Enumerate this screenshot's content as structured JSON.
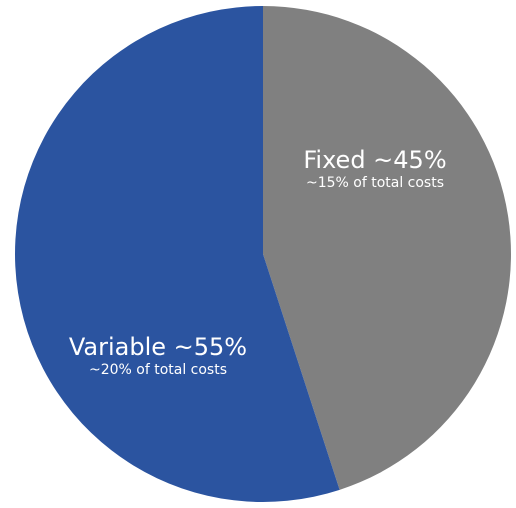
{
  "chart_data": {
    "type": "pie",
    "title": "",
    "slices": [
      {
        "name": "Fixed",
        "label": "Fixed ~45%",
        "sublabel": "~15% of total costs",
        "value": 45,
        "color": "#808080"
      },
      {
        "name": "Variable",
        "label": "Variable ~55%",
        "sublabel": "~20% of total costs",
        "value": 55,
        "color": "#2b54a0"
      }
    ],
    "start_angle_deg": 0,
    "direction": "clockwise",
    "legend": "none"
  }
}
